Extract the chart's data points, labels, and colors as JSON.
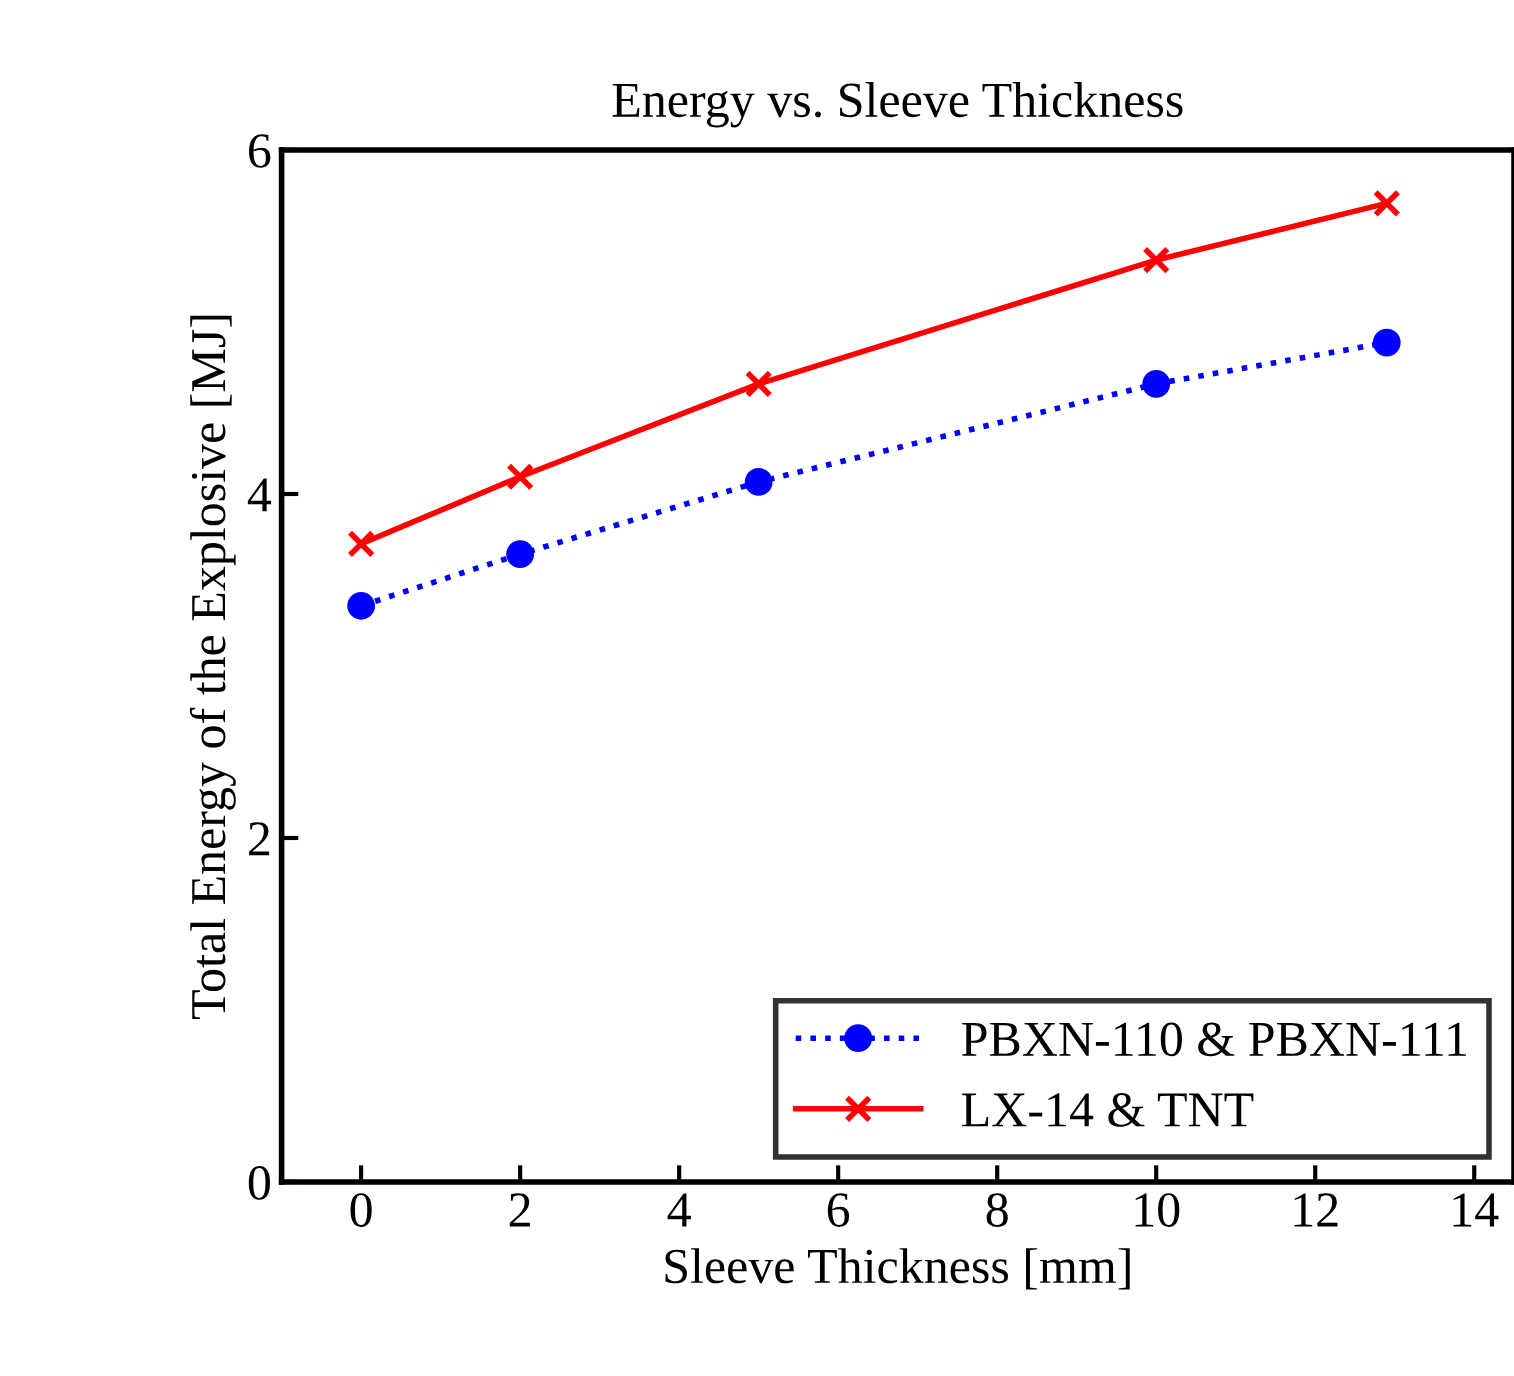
{
  "chart_data": {
    "type": "line",
    "title": "Energy vs. Sleeve Thickness",
    "xlabel": "Sleeve Thickness [mm]",
    "ylabel": "Total Energy of the Explosive [MJ]",
    "x": [
      0,
      2,
      5,
      10,
      12.9
    ],
    "series": [
      {
        "name": "PBXN-110 & PBXN-111",
        "color": "#0000ff",
        "values": [
          3.35,
          3.65,
          4.07,
          4.64,
          4.88
        ],
        "marker": "circle",
        "line_style": "dotted"
      },
      {
        "name": "LX-14 & TNT",
        "color": "#ff0000",
        "values": [
          3.71,
          4.1,
          4.64,
          5.36,
          5.69
        ],
        "marker": "cross",
        "line_style": "solid"
      }
    ],
    "xlim": [
      -1,
      14.5
    ],
    "ylim": [
      0,
      6
    ],
    "xticks": [
      0,
      2,
      4,
      6,
      8,
      10,
      12,
      14
    ],
    "yticks": [
      0,
      2,
      4,
      6
    ],
    "grid": false,
    "legend": "bottom right"
  }
}
